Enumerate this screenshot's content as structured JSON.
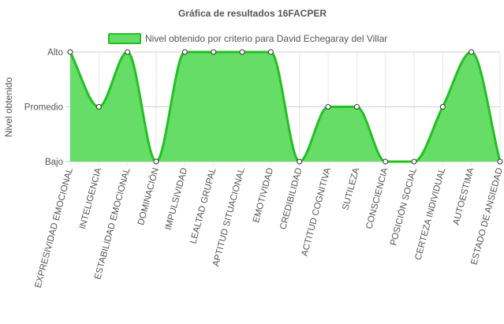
{
  "colors": {
    "fill": "#66dd66",
    "line": "#22c022",
    "point_fill": "#ffffff",
    "point_stroke": "#333333",
    "grid": "#e6e6e6",
    "grid_strong": "#cfcfcf",
    "text": "#555555"
  },
  "chart_data": {
    "type": "area",
    "title": "Gráfica de resultados 16FACPER",
    "ylabel": "Nivel obtenido",
    "xlabel": "",
    "y_categories": [
      "Bajo",
      "Promedio",
      "Alto"
    ],
    "ylim": [
      1,
      3
    ],
    "grid": true,
    "legend_position": "top",
    "categories": [
      "EXPRESIVIDAD EMOCIONAL",
      "INTELIGENCIA",
      "ESTABILIDAD EMOCIONAL",
      "DOMINACIÓN",
      "IMPULSIVIDAD",
      "LEALTAD GRUPAL",
      "APTITUD SITUACIONAL",
      "EMOTIVIDAD",
      "CREDIBILIDAD",
      "ACTITUD COGNITIVA",
      "SUTILEZA",
      "CONSCIENCIA",
      "POSICIÓN SOCIAL",
      "CERTEZA INDIVIDUAL",
      "AUTOESTIMA",
      "ESTADO DE ANSIEDAD"
    ],
    "series": [
      {
        "name": "Nivel obtenido por criterio para David Echegaray del Villar",
        "values": [
          3,
          2,
          3,
          1,
          3,
          3,
          3,
          3,
          1,
          2,
          2,
          1,
          1,
          2,
          3,
          1
        ]
      }
    ]
  }
}
